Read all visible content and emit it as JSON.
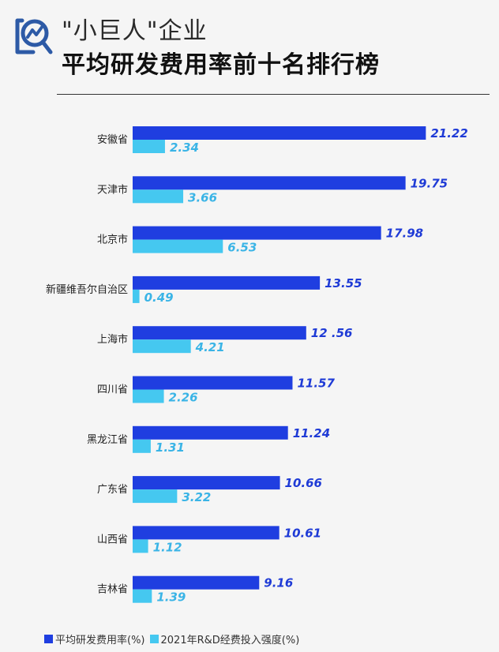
{
  "header": {
    "title_line1": "\"小巨人\"企业",
    "title_line2": "平均研发费用率前十名排行榜"
  },
  "colors": {
    "primary_bar": "#1f3ee0",
    "secondary_bar": "#45c8f0",
    "primary_label": "#1f3bd6",
    "secondary_label": "#3ab4e6",
    "logo": "#2d5aa6",
    "category_text": "#222222"
  },
  "chart_data": {
    "type": "bar",
    "orientation": "horizontal",
    "categories": [
      "安徽省",
      "天津市",
      "北京市",
      "新疆维吾尔自治区",
      "上海市",
      "四川省",
      "黑龙江省",
      "广东省",
      "山西省",
      "吉林省"
    ],
    "series": [
      {
        "name": "平均研发费用率(%)",
        "values": [
          21.22,
          19.75,
          17.98,
          13.55,
          12.56,
          11.57,
          11.24,
          10.66,
          10.61,
          9.16
        ],
        "labels": [
          "21.22",
          "19.75",
          "17.98",
          "13.55",
          "12 .56",
          "11.57",
          "11.24",
          "10.66",
          "10.61",
          "9.16"
        ]
      },
      {
        "name": "2021年R&D经费投入强度(%)",
        "values": [
          2.34,
          3.66,
          6.53,
          0.49,
          4.21,
          2.26,
          1.31,
          3.22,
          1.12,
          1.39
        ],
        "labels": [
          "2.34",
          "3.66",
          "6.53",
          "0.49",
          "4.21",
          "2.26",
          "1.31",
          "3.22",
          "1.12",
          "1.39"
        ]
      }
    ],
    "grid": false,
    "legend_position": "bottom-left"
  }
}
